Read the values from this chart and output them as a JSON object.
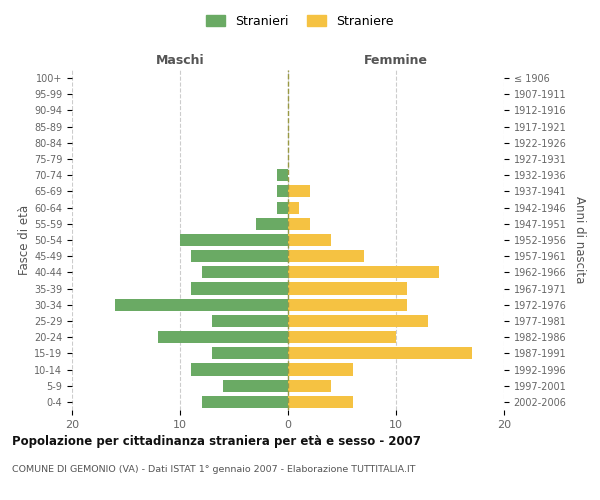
{
  "age_groups": [
    "0-4",
    "5-9",
    "10-14",
    "15-19",
    "20-24",
    "25-29",
    "30-34",
    "35-39",
    "40-44",
    "45-49",
    "50-54",
    "55-59",
    "60-64",
    "65-69",
    "70-74",
    "75-79",
    "80-84",
    "85-89",
    "90-94",
    "95-99",
    "100+"
  ],
  "birth_years": [
    "2002-2006",
    "1997-2001",
    "1992-1996",
    "1987-1991",
    "1982-1986",
    "1977-1981",
    "1972-1976",
    "1967-1971",
    "1962-1966",
    "1957-1961",
    "1952-1956",
    "1947-1951",
    "1942-1946",
    "1937-1941",
    "1932-1936",
    "1927-1931",
    "1922-1926",
    "1917-1921",
    "1912-1916",
    "1907-1911",
    "≤ 1906"
  ],
  "maschi": [
    8,
    6,
    9,
    7,
    12,
    7,
    16,
    9,
    8,
    9,
    10,
    3,
    1,
    1,
    1,
    0,
    0,
    0,
    0,
    0,
    0
  ],
  "femmine": [
    6,
    4,
    6,
    17,
    10,
    13,
    11,
    11,
    14,
    7,
    4,
    2,
    1,
    2,
    0,
    0,
    0,
    0,
    0,
    0,
    0
  ],
  "maschi_color": "#6aaa64",
  "femmine_color": "#f5c242",
  "title": "Popolazione per cittadinanza straniera per età e sesso - 2007",
  "subtitle": "COMUNE DI GEMONIO (VA) - Dati ISTAT 1° gennaio 2007 - Elaborazione TUTTITALIA.IT",
  "xlabel_left": "Maschi",
  "xlabel_right": "Femmine",
  "ylabel_left": "Fasce di età",
  "ylabel_right": "Anni di nascita",
  "legend_maschi": "Stranieri",
  "legend_femmine": "Straniere",
  "xlim": 20,
  "background_color": "#ffffff",
  "grid_color": "#cccccc"
}
